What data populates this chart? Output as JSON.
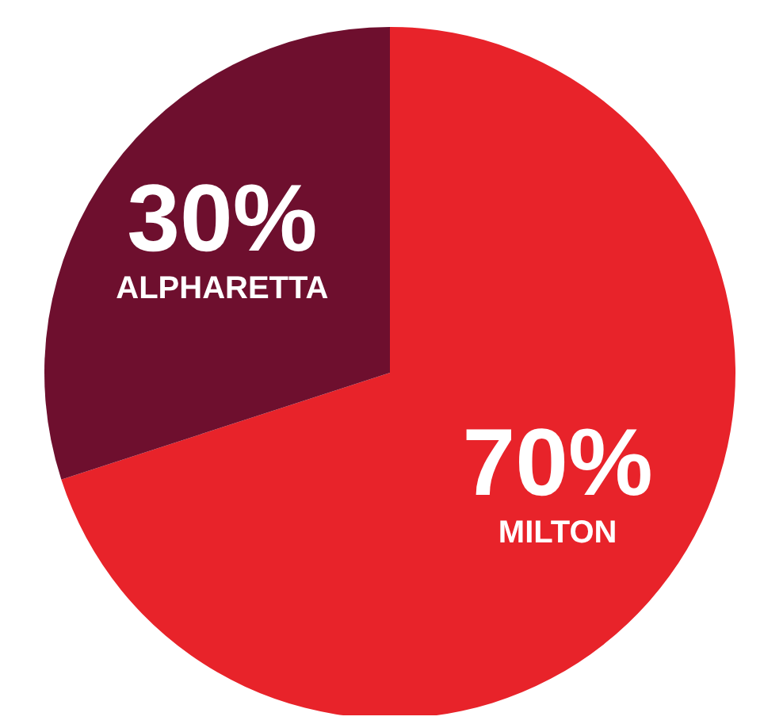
{
  "chart_data": {
    "type": "pie",
    "categories": [
      "MILTON",
      "ALPHARETTA"
    ],
    "values": [
      70,
      30
    ],
    "colors": [
      "#e8232a",
      "#6e0f2e"
    ],
    "value_labels": [
      "70%",
      "30%"
    ],
    "legend": false
  }
}
